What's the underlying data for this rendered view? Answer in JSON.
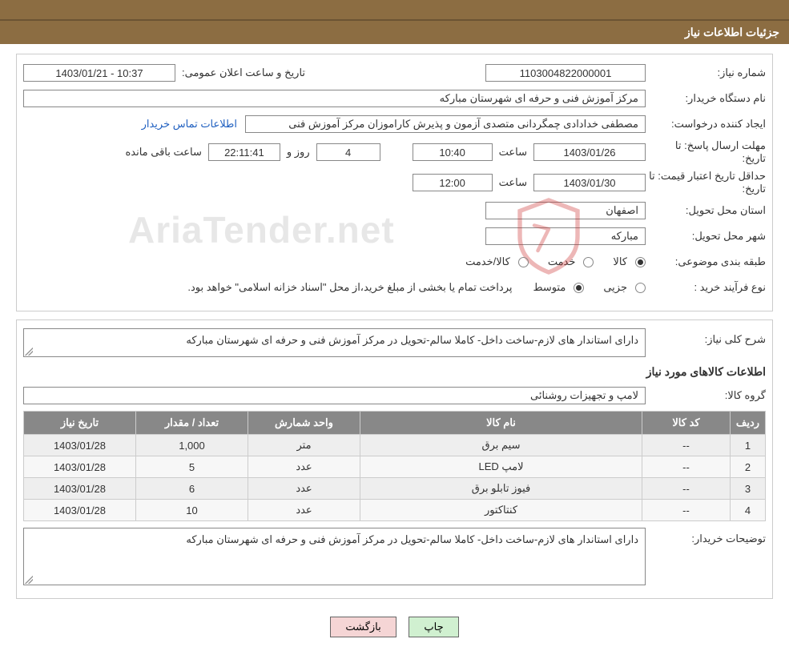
{
  "header": {
    "title": "جزئیات اطلاعات نیاز"
  },
  "info": {
    "need_number_label": "شماره نیاز:",
    "need_number": "1103004822000001",
    "announce_label": "تاریخ و ساعت اعلان عمومی:",
    "announce_value": "10:37 - 1403/01/21",
    "buyer_label": "نام دستگاه خریدار:",
    "buyer_value": "مرکز آموزش فنی و حرفه ای شهرستان مبارکه",
    "requester_label": "ایجاد کننده درخواست:",
    "requester_value": "مصطفی خدادادی چمگردانی متصدی آزمون و پذیرش کاراموزان مرکز آموزش فنی",
    "contact_link": "اطلاعات تماس خریدار",
    "deadline_label": "مهلت ارسال پاسخ: تا تاریخ:",
    "deadline_date": "1403/01/26",
    "time_label": "ساعت",
    "deadline_time": "10:40",
    "days_value": "4",
    "days_and": "روز و",
    "countdown": "22:11:41",
    "remaining_label": "ساعت باقی مانده",
    "validity_label": "حداقل تاریخ اعتبار قیمت: تا تاریخ:",
    "validity_date": "1403/01/30",
    "validity_time": "12:00",
    "province_label": "استان محل تحویل:",
    "province_value": "اصفهان",
    "city_label": "شهر محل تحویل:",
    "city_value": "مبارکه",
    "category_label": "طبقه بندی موضوعی:",
    "cat_goods": "کالا",
    "cat_service": "خدمت",
    "cat_goods_service": "کالا/خدمت",
    "purchase_type_label": "نوع فرآیند خرید :",
    "pt_partial": "جزیی",
    "pt_medium": "متوسط",
    "payment_note": "پرداخت تمام یا بخشی از مبلغ خرید،از محل \"اسناد خزانه اسلامی\" خواهد بود."
  },
  "need": {
    "desc_label": "شرح کلی نیاز:",
    "desc_value": "دارای استاندار های لازم-ساخت داخل- کاملا سالم-تحویل در مرکز آموزش فنی و حرفه ای شهرستان مبارکه",
    "goods_heading": "اطلاعات کالاهای مورد نیاز",
    "group_label": "گروه کالا:",
    "group_value": "لامپ و تجهیزات روشنائی",
    "buyer_notes_label": "توضیحات خریدار:",
    "buyer_notes_value": "دارای استاندار های لازم-ساخت داخل- کاملا سالم-تحویل در مرکز آموزش فنی و حرفه ای شهرستان مبارکه"
  },
  "table": {
    "columns": [
      "ردیف",
      "کد کالا",
      "نام کالا",
      "واحد شمارش",
      "تعداد / مقدار",
      "تاریخ نیاز"
    ],
    "rows": [
      [
        "1",
        "--",
        "سیم برق",
        "متر",
        "1,000",
        "1403/01/28"
      ],
      [
        "2",
        "--",
        "لامپ LED",
        "عدد",
        "5",
        "1403/01/28"
      ],
      [
        "3",
        "--",
        "فیوز تابلو برق",
        "عدد",
        "6",
        "1403/01/28"
      ],
      [
        "4",
        "--",
        "کنتاکتور",
        "عدد",
        "10",
        "1403/01/28"
      ]
    ]
  },
  "buttons": {
    "print": "چاپ",
    "back": "بازگشت"
  },
  "watermark": "AriaTender.net",
  "colors": {
    "header_bg": "#8c6d42",
    "th_bg": "#888888",
    "td_bg": "#eeeeee",
    "link": "#2060c0",
    "btn_print": "#d0f0d0",
    "btn_back": "#f5d5d5"
  }
}
